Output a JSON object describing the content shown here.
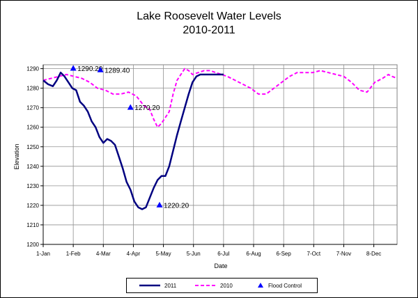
{
  "title": "Lake Roosevelt Water Levels",
  "subtitle": "2010-2011",
  "chart_data": {
    "type": "line",
    "xlabel": "Date",
    "ylabel": "Elevation",
    "x_ticks": [
      "1-Jan",
      "1-Feb",
      "4-Mar",
      "4-Apr",
      "5-May",
      "5-Jun",
      "6-Jul",
      "6-Aug",
      "6-Sep",
      "7-Oct",
      "7-Nov",
      "8-Dec"
    ],
    "x_tick_days": [
      0,
      31,
      62,
      93,
      124,
      155,
      186,
      217,
      248,
      279,
      310,
      341
    ],
    "xlim_days": [
      0,
      365
    ],
    "y_ticks": [
      1200,
      1210,
      1220,
      1230,
      1240,
      1250,
      1260,
      1270,
      1280,
      1290
    ],
    "ylim": [
      1200,
      1292
    ],
    "grid": true,
    "legend_position": "bottom",
    "series": [
      {
        "name": "2011",
        "color": "#000080",
        "style": "solid",
        "x_days": [
          0,
          5,
          10,
          14,
          18,
          22,
          26,
          30,
          34,
          38,
          42,
          46,
          50,
          54,
          58,
          62,
          66,
          70,
          74,
          78,
          82,
          86,
          90,
          94,
          98,
          102,
          106,
          110,
          114,
          118,
          122,
          126,
          130,
          134,
          138,
          142,
          146,
          150,
          154,
          158,
          162,
          166,
          170,
          174,
          178,
          182,
          186
        ],
        "values": [
          1284,
          1282,
          1281,
          1284,
          1288,
          1286,
          1283,
          1280,
          1279,
          1273,
          1271,
          1268,
          1263,
          1260,
          1255,
          1252,
          1254,
          1253,
          1251,
          1245,
          1239,
          1232,
          1228,
          1222,
          1219,
          1218,
          1219,
          1224,
          1229,
          1233,
          1235,
          1235,
          1240,
          1248,
          1256,
          1263,
          1270,
          1277,
          1283,
          1286,
          1287,
          1287,
          1287,
          1287,
          1287,
          1287,
          1287
        ]
      },
      {
        "name": "2010",
        "color": "#ff00ff",
        "style": "dashed",
        "x_days": [
          0,
          8,
          16,
          24,
          32,
          40,
          48,
          56,
          64,
          72,
          80,
          88,
          96,
          104,
          110,
          114,
          118,
          122,
          126,
          130,
          134,
          138,
          142,
          146,
          150,
          154,
          160,
          166,
          172,
          178,
          184,
          190,
          198,
          206,
          214,
          222,
          230,
          238,
          246,
          254,
          262,
          270,
          278,
          286,
          294,
          302,
          310,
          318,
          326,
          334,
          342,
          350,
          356,
          360,
          365
        ],
        "values": [
          1284,
          1285,
          1286,
          1287,
          1286,
          1285,
          1283,
          1280,
          1279,
          1277,
          1277,
          1278,
          1276,
          1271,
          1269,
          1264,
          1260,
          1262,
          1265,
          1268,
          1277,
          1284,
          1287,
          1290,
          1289,
          1287,
          1288,
          1289,
          1289,
          1288,
          1287,
          1286,
          1284,
          1282,
          1280,
          1277,
          1277,
          1280,
          1283,
          1286,
          1288,
          1288,
          1288,
          1289,
          1288,
          1287,
          1286,
          1283,
          1279,
          1278,
          1283,
          1285,
          1287,
          1286,
          1285
        ]
      }
    ],
    "flood_control": {
      "name": "Flood Control",
      "color": "#0000ff",
      "points": [
        {
          "x_day": 31,
          "value": 1290.2,
          "label": "1290.20"
        },
        {
          "x_day": 59,
          "value": 1289.4,
          "label": "1289.40"
        },
        {
          "x_day": 90,
          "value": 1270.2,
          "label": "1270.20"
        },
        {
          "x_day": 120,
          "value": 1220.2,
          "label": "1220.20"
        }
      ]
    }
  },
  "legend": {
    "item_2011": "2011",
    "item_2010": "2010",
    "item_flood": "Flood Control"
  }
}
